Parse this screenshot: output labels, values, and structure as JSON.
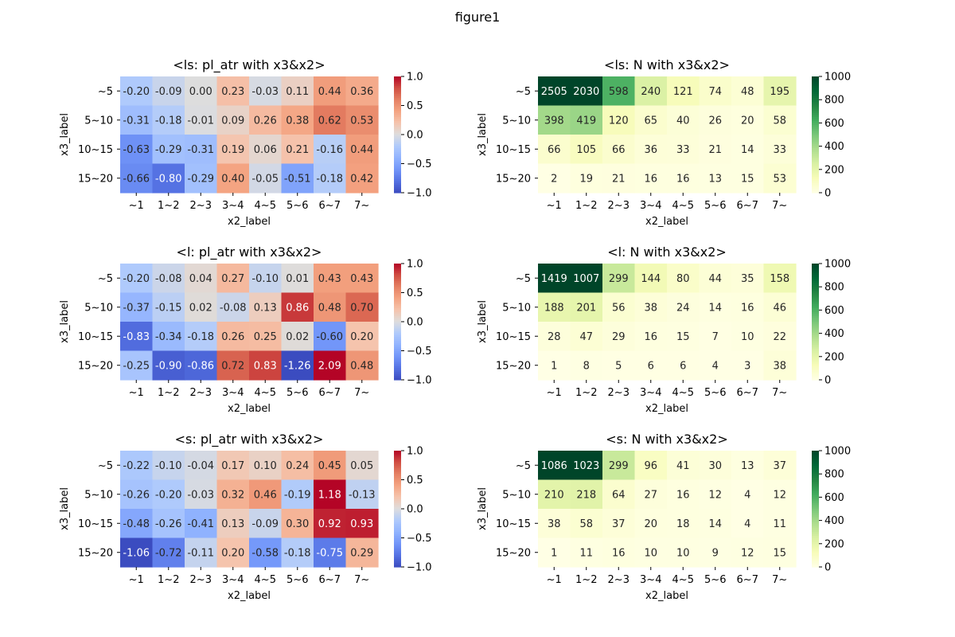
{
  "figure": {
    "title": "figure1"
  },
  "chart_data": [
    {
      "type": "heatmap",
      "title": "<ls: pl_atr with x3&x2>",
      "xlabel": "x2_label",
      "ylabel": "x3_label",
      "x_categories": [
        "~1",
        "1~2",
        "2~3",
        "3~4",
        "4~5",
        "5~6",
        "6~7",
        "7~"
      ],
      "y_categories": [
        "~5",
        "5~10",
        "10~15",
        "15~20"
      ],
      "values": [
        [
          -0.2,
          -0.09,
          0.0,
          0.23,
          -0.03,
          0.11,
          0.44,
          0.36
        ],
        [
          -0.31,
          -0.18,
          -0.01,
          0.09,
          0.26,
          0.38,
          0.62,
          0.53
        ],
        [
          -0.63,
          -0.29,
          -0.31,
          0.19,
          0.06,
          0.21,
          -0.16,
          0.44
        ],
        [
          -0.66,
          -0.8,
          -0.29,
          0.4,
          -0.05,
          -0.51,
          -0.18,
          0.42
        ]
      ],
      "labels": [
        [
          "-0.20",
          "-0.09",
          "0.00",
          "0.23",
          "-0.03",
          "0.11",
          "0.44",
          "0.36"
        ],
        [
          "-0.31",
          "-0.18",
          "-0.01",
          "0.09",
          "0.26",
          "0.38",
          "0.62",
          "0.53"
        ],
        [
          "-0.63",
          "-0.29",
          "-0.31",
          "0.19",
          "0.06",
          "0.21",
          "-0.16",
          "0.44"
        ],
        [
          "-0.66",
          "-0.80",
          "-0.29",
          "0.40",
          "-0.05",
          "-0.51",
          "-0.18",
          "0.42"
        ]
      ],
      "colormap": "coolwarm",
      "vmin": -1.0,
      "vmax": 1.0,
      "colorbar_ticks": [
        "1.0",
        "0.5",
        "0.0",
        "−0.5",
        "−1.0"
      ]
    },
    {
      "type": "heatmap",
      "title": "<ls: N with x3&x2>",
      "xlabel": "x2_label",
      "ylabel": "x3_label",
      "x_categories": [
        "~1",
        "1~2",
        "2~3",
        "3~4",
        "4~5",
        "5~6",
        "6~7",
        "7~"
      ],
      "y_categories": [
        "~5",
        "5~10",
        "10~15",
        "15~20"
      ],
      "values": [
        [
          2505,
          2030,
          598,
          240,
          121,
          74,
          48,
          195
        ],
        [
          398,
          419,
          120,
          65,
          40,
          26,
          20,
          58
        ],
        [
          66,
          105,
          66,
          36,
          33,
          21,
          14,
          33
        ],
        [
          2,
          19,
          21,
          16,
          16,
          13,
          15,
          53
        ]
      ],
      "labels": [
        [
          "2505",
          "2030",
          "598",
          "240",
          "121",
          "74",
          "48",
          "195"
        ],
        [
          "398",
          "419",
          "120",
          "65",
          "40",
          "26",
          "20",
          "58"
        ],
        [
          "66",
          "105",
          "66",
          "36",
          "33",
          "21",
          "14",
          "33"
        ],
        [
          "2",
          "19",
          "21",
          "16",
          "16",
          "13",
          "15",
          "53"
        ]
      ],
      "colormap": "YlGn",
      "vmin": 0,
      "vmax": 1000,
      "colorbar_ticks": [
        "1000",
        "800",
        "600",
        "400",
        "200",
        "0"
      ]
    },
    {
      "type": "heatmap",
      "title": "<l: pl_atr with x3&x2>",
      "xlabel": "x2_label",
      "ylabel": "x3_label",
      "x_categories": [
        "~1",
        "1~2",
        "2~3",
        "3~4",
        "4~5",
        "5~6",
        "6~7",
        "7~"
      ],
      "y_categories": [
        "~5",
        "5~10",
        "10~15",
        "15~20"
      ],
      "values": [
        [
          -0.2,
          -0.08,
          0.04,
          0.27,
          -0.1,
          0.01,
          0.43,
          0.43
        ],
        [
          -0.37,
          -0.15,
          0.02,
          -0.08,
          0.13,
          0.86,
          0.48,
          0.7
        ],
        [
          -0.83,
          -0.34,
          -0.18,
          0.26,
          0.25,
          0.02,
          -0.6,
          0.2
        ],
        [
          -0.25,
          -0.9,
          -0.86,
          0.72,
          0.83,
          -1.26,
          2.09,
          0.48
        ]
      ],
      "labels": [
        [
          "-0.20",
          "-0.08",
          "0.04",
          "0.27",
          "-0.10",
          "0.01",
          "0.43",
          "0.43"
        ],
        [
          "-0.37",
          "-0.15",
          "0.02",
          "-0.08",
          "0.13",
          "0.86",
          "0.48",
          "0.70"
        ],
        [
          "-0.83",
          "-0.34",
          "-0.18",
          "0.26",
          "0.25",
          "0.02",
          "-0.60",
          "0.20"
        ],
        [
          "-0.25",
          "-0.90",
          "-0.86",
          "0.72",
          "0.83",
          "-1.26",
          "2.09",
          "0.48"
        ]
      ],
      "colormap": "coolwarm",
      "vmin": -1.0,
      "vmax": 1.0,
      "colorbar_ticks": [
        "1.0",
        "0.5",
        "0.0",
        "−0.5",
        "−1.0"
      ]
    },
    {
      "type": "heatmap",
      "title": "<l: N with x3&x2>",
      "xlabel": "x2_label",
      "ylabel": "x3_label",
      "x_categories": [
        "~1",
        "1~2",
        "2~3",
        "3~4",
        "4~5",
        "5~6",
        "6~7",
        "7~"
      ],
      "y_categories": [
        "~5",
        "5~10",
        "10~15",
        "15~20"
      ],
      "values": [
        [
          1419,
          1007,
          299,
          144,
          80,
          44,
          35,
          158
        ],
        [
          188,
          201,
          56,
          38,
          24,
          14,
          16,
          46
        ],
        [
          28,
          47,
          29,
          16,
          15,
          7,
          10,
          22
        ],
        [
          1,
          8,
          5,
          6,
          6,
          4,
          3,
          38
        ]
      ],
      "labels": [
        [
          "1419",
          "1007",
          "299",
          "144",
          "80",
          "44",
          "35",
          "158"
        ],
        [
          "188",
          "201",
          "56",
          "38",
          "24",
          "14",
          "16",
          "46"
        ],
        [
          "28",
          "47",
          "29",
          "16",
          "15",
          "7",
          "10",
          "22"
        ],
        [
          "1",
          "8",
          "5",
          "6",
          "6",
          "4",
          "3",
          "38"
        ]
      ],
      "colormap": "YlGn",
      "vmin": 0,
      "vmax": 1000,
      "colorbar_ticks": [
        "1000",
        "800",
        "600",
        "400",
        "200",
        "0"
      ]
    },
    {
      "type": "heatmap",
      "title": "<s: pl_atr with x3&x2>",
      "xlabel": "x2_label",
      "ylabel": "x3_label",
      "x_categories": [
        "~1",
        "1~2",
        "2~3",
        "3~4",
        "4~5",
        "5~6",
        "6~7",
        "7~"
      ],
      "y_categories": [
        "~5",
        "5~10",
        "10~15",
        "15~20"
      ],
      "values": [
        [
          -0.22,
          -0.1,
          -0.04,
          0.17,
          0.1,
          0.24,
          0.45,
          0.05
        ],
        [
          -0.26,
          -0.2,
          -0.03,
          0.32,
          0.46,
          -0.19,
          1.18,
          -0.13
        ],
        [
          -0.48,
          -0.26,
          -0.41,
          0.13,
          -0.09,
          0.3,
          0.92,
          0.93
        ],
        [
          -1.06,
          -0.72,
          -0.11,
          0.2,
          -0.58,
          -0.18,
          -0.75,
          0.29
        ]
      ],
      "labels": [
        [
          "-0.22",
          "-0.10",
          "-0.04",
          "0.17",
          "0.10",
          "0.24",
          "0.45",
          "0.05"
        ],
        [
          "-0.26",
          "-0.20",
          "-0.03",
          "0.32",
          "0.46",
          "-0.19",
          "1.18",
          "-0.13"
        ],
        [
          "-0.48",
          "-0.26",
          "-0.41",
          "0.13",
          "-0.09",
          "0.30",
          "0.92",
          "0.93"
        ],
        [
          "-1.06",
          "-0.72",
          "-0.11",
          "0.20",
          "-0.58",
          "-0.18",
          "-0.75",
          "0.29"
        ]
      ],
      "colormap": "coolwarm",
      "vmin": -1.0,
      "vmax": 1.0,
      "colorbar_ticks": [
        "1.0",
        "0.5",
        "0.0",
        "−0.5",
        "−1.0"
      ]
    },
    {
      "type": "heatmap",
      "title": "<s: N with x3&x2>",
      "xlabel": "x2_label",
      "ylabel": "x3_label",
      "x_categories": [
        "~1",
        "1~2",
        "2~3",
        "3~4",
        "4~5",
        "5~6",
        "6~7",
        "7~"
      ],
      "y_categories": [
        "~5",
        "5~10",
        "10~15",
        "15~20"
      ],
      "values": [
        [
          1086,
          1023,
          299,
          96,
          41,
          30,
          13,
          37
        ],
        [
          210,
          218,
          64,
          27,
          16,
          12,
          4,
          12
        ],
        [
          38,
          58,
          37,
          20,
          18,
          14,
          4,
          11
        ],
        [
          1,
          11,
          16,
          10,
          10,
          9,
          12,
          15
        ]
      ],
      "labels": [
        [
          "1086",
          "1023",
          "299",
          "96",
          "41",
          "30",
          "13",
          "37"
        ],
        [
          "210",
          "218",
          "64",
          "27",
          "16",
          "12",
          "4",
          "12"
        ],
        [
          "38",
          "58",
          "37",
          "20",
          "18",
          "14",
          "4",
          "11"
        ],
        [
          "1",
          "11",
          "16",
          "10",
          "10",
          "9",
          "12",
          "15"
        ]
      ],
      "colormap": "YlGn",
      "vmin": 0,
      "vmax": 1000,
      "colorbar_ticks": [
        "1000",
        "800",
        "600",
        "400",
        "200",
        "0"
      ]
    }
  ]
}
